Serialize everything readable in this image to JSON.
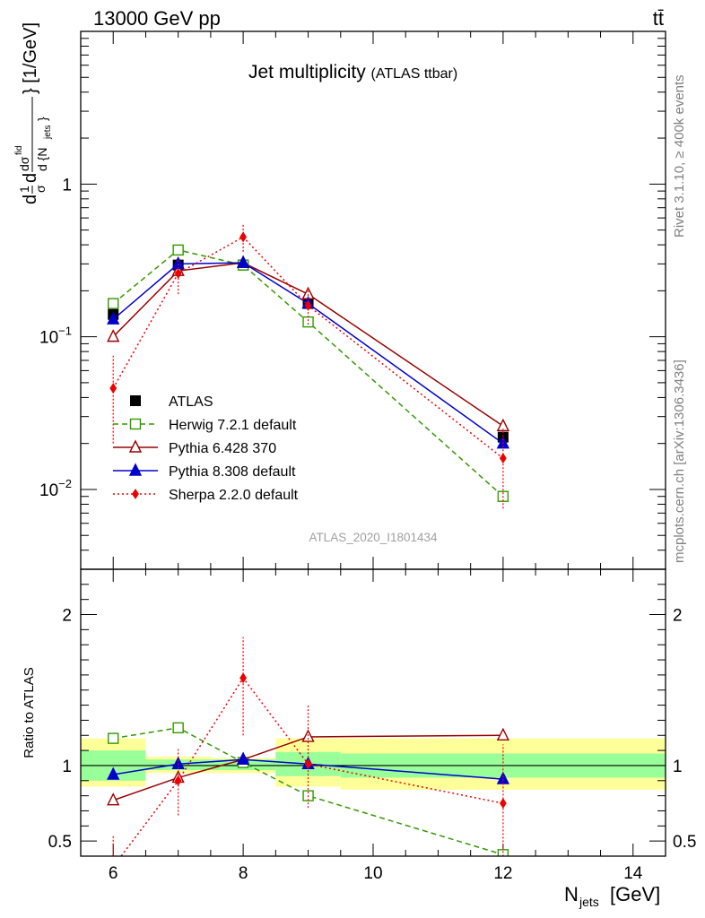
{
  "header": {
    "energy_label": "13000 GeV pp",
    "process_label": "tt̄"
  },
  "side_labels": {
    "rivet": "Rivet 3.1.10, ≥ 400k events",
    "source": "mcplots.cern.ch [arXiv:1306.3436]"
  },
  "chart_data": [
    {
      "type": "line",
      "title": "Jet multiplicity",
      "subtitle": "(ATLAS ttbar)",
      "analysis_id": "ATLAS_2020_I1801434",
      "xlabel": "N_jets [GeV]",
      "ylabel": "1/σ dσ^fid / d{N_jets} [1/GeV]",
      "yscale": "log",
      "ylim": [
        0.003,
        10
      ],
      "xlim": [
        5.5,
        14.5
      ],
      "y_tick_labels": [
        "10^-2",
        "10^-1",
        "1"
      ],
      "legend_position": "bottom-left",
      "series": [
        {
          "name": "ATLAS",
          "color": "#000000",
          "marker": "filled-square",
          "line": "none",
          "points": [
            [
              6,
              0.14
            ],
            [
              7,
              0.295
            ],
            [
              8,
              0.295
            ],
            [
              9,
              0.165
            ],
            [
              12,
              0.022
            ]
          ]
        },
        {
          "name": "Herwig 7.2.1 default",
          "color": "#339900",
          "marker": "open-square",
          "line": "dashed",
          "points": [
            [
              6,
              0.165
            ],
            [
              7,
              0.37
            ],
            [
              8,
              0.295
            ],
            [
              9,
              0.125
            ],
            [
              12,
              0.009
            ]
          ]
        },
        {
          "name": "Pythia 6.428 370",
          "color": "#990000",
          "marker": "open-triangle",
          "line": "solid",
          "points": [
            [
              6,
              0.1
            ],
            [
              7,
              0.27
            ],
            [
              8,
              0.305
            ],
            [
              9,
              0.19
            ],
            [
              12,
              0.026
            ]
          ]
        },
        {
          "name": "Pythia 8.308 default",
          "color": "#0000cc",
          "marker": "filled-triangle",
          "line": "solid",
          "points": [
            [
              6,
              0.13
            ],
            [
              7,
              0.3
            ],
            [
              8,
              0.305
            ],
            [
              9,
              0.165
            ],
            [
              12,
              0.02
            ]
          ]
        },
        {
          "name": "Sherpa 2.2.0 default",
          "color": "#ee0000",
          "marker": "filled-diamond",
          "line": "dotted",
          "points": [
            [
              6,
              0.046
            ],
            [
              7,
              0.26
            ],
            [
              8,
              0.45
            ],
            [
              9,
              0.16
            ],
            [
              12,
              0.016
            ]
          ],
          "errors": [
            [
              0.02,
              0.075
            ],
            [
              0.19,
              0.33
            ],
            [
              0.36,
              0.55
            ],
            [
              0.12,
              0.21
            ],
            [
              0.0075,
              0.025
            ]
          ]
        }
      ]
    },
    {
      "type": "line",
      "ylabel": "Ratio to ATLAS",
      "xlabel": "N_jets [GeV]",
      "ylim": [
        0.4,
        2.3
      ],
      "xlim": [
        5.5,
        14.5
      ],
      "x_ticks": [
        6,
        8,
        10,
        12,
        14
      ],
      "y_ticks": [
        0.5,
        1,
        2
      ],
      "reference_line": 1,
      "uncertainty_bands": [
        {
          "x": [
            5.5,
            6.5
          ],
          "inner": [
            0.9,
            1.1
          ],
          "outer": [
            0.86,
            1.18
          ]
        },
        {
          "x": [
            6.5,
            7.5
          ],
          "inner": [
            0.97,
            1.04
          ],
          "outer": [
            0.95,
            1.06
          ]
        },
        {
          "x": [
            7.5,
            8.5
          ],
          "inner": [
            0.97,
            1.04
          ],
          "outer": [
            0.95,
            1.05
          ]
        },
        {
          "x": [
            8.5,
            9.5
          ],
          "inner": [
            0.93,
            1.09
          ],
          "outer": [
            0.86,
            1.18
          ]
        },
        {
          "x": [
            9.5,
            14.5
          ],
          "inner": [
            0.92,
            1.08
          ],
          "outer": [
            0.84,
            1.18
          ]
        }
      ],
      "series": [
        {
          "name": "Herwig 7.2.1 default",
          "color": "#339900",
          "marker": "open-square",
          "line": "dashed",
          "points": [
            [
              6,
              1.18
            ],
            [
              7,
              1.25
            ],
            [
              8,
              1.02
            ],
            [
              9,
              0.8
            ],
            [
              12,
              0.41
            ]
          ]
        },
        {
          "name": "Pythia 6.428 370",
          "color": "#990000",
          "marker": "open-triangle",
          "line": "solid",
          "points": [
            [
              6,
              0.77
            ],
            [
              7,
              0.92
            ],
            [
              8,
              1.04
            ],
            [
              9,
              1.19
            ],
            [
              12,
              1.2
            ]
          ]
        },
        {
          "name": "Pythia 8.308 default",
          "color": "#0000cc",
          "marker": "filled-triangle",
          "line": "solid",
          "points": [
            [
              6,
              0.94
            ],
            [
              7,
              1.01
            ],
            [
              8,
              1.04
            ],
            [
              9,
              1.01
            ],
            [
              12,
              0.91
            ]
          ]
        },
        {
          "name": "Sherpa 2.2.0 default",
          "color": "#ee0000",
          "marker": "filled-diamond",
          "line": "dotted",
          "points": [
            [
              6,
              0.33
            ],
            [
              7,
              0.9
            ],
            [
              8,
              1.58
            ],
            [
              9,
              1.01
            ],
            [
              12,
              0.75
            ]
          ],
          "errors": [
            [
              0.14,
              0.54
            ],
            [
              0.67,
              1.12
            ],
            [
              1.2,
              1.85
            ],
            [
              0.72,
              1.4
            ],
            [
              0.35,
              1.14
            ]
          ]
        }
      ]
    }
  ]
}
